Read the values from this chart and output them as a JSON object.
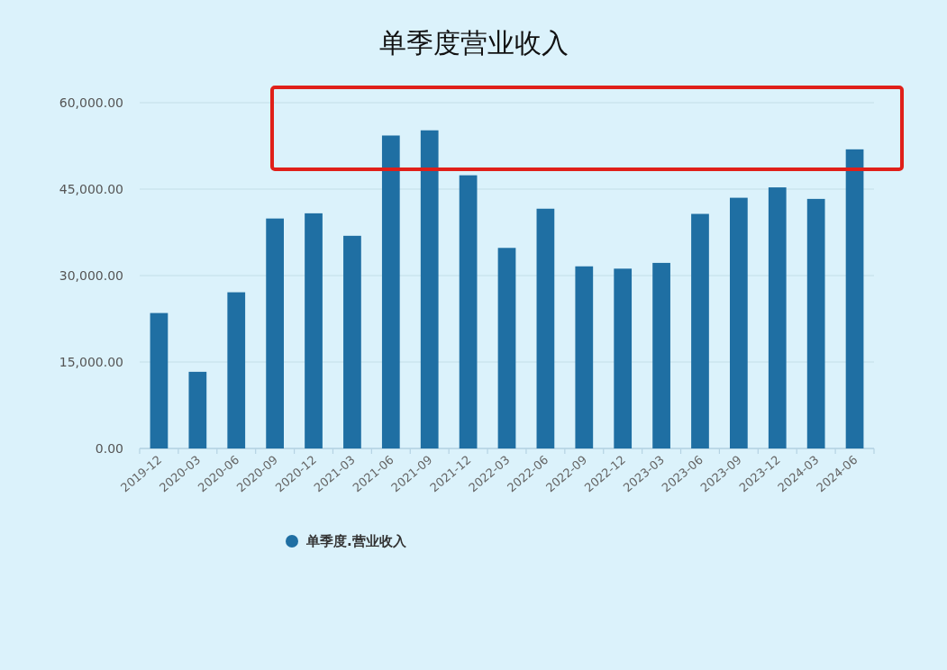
{
  "chart_data": {
    "type": "bar",
    "title": "单季度营业收入",
    "categories": [
      "2019-12",
      "2020-03",
      "2020-06",
      "2020-09",
      "2020-12",
      "2021-03",
      "2021-06",
      "2021-09",
      "2021-12",
      "2022-03",
      "2022-06",
      "2022-09",
      "2022-12",
      "2023-03",
      "2023-06",
      "2023-09",
      "2023-12",
      "2024-03",
      "2024-06"
    ],
    "series": [
      {
        "name": "单季度.营业收入",
        "color": "#1f6fa3",
        "values": [
          23500,
          13300,
          27100,
          39900,
          40800,
          36900,
          54300,
          55200,
          47400,
          34800,
          41600,
          31600,
          31200,
          32200,
          40700,
          43500,
          45300,
          43300,
          51900
        ]
      }
    ],
    "ylim": [
      0,
      60000
    ],
    "yticks": [
      {
        "value": 0,
        "label": "0.00"
      },
      {
        "value": 15000,
        "label": "15,000.00"
      },
      {
        "value": 30000,
        "label": "30,000.00"
      },
      {
        "value": 45000,
        "label": "45,000.00"
      },
      {
        "value": 60000,
        "label": "60,000.00"
      }
    ],
    "grid": "y",
    "legend": "bottom"
  }
}
